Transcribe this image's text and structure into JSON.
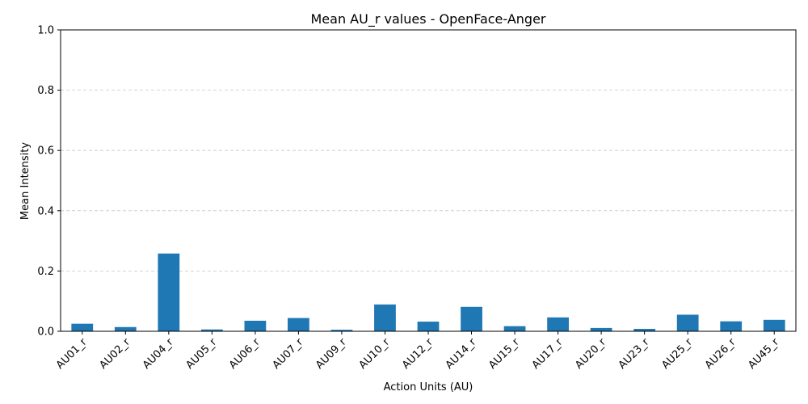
{
  "chart_data": {
    "type": "bar",
    "title": "Mean AU_r values - OpenFace-Anger",
    "xlabel": "Action Units (AU)",
    "ylabel": "Mean Intensity",
    "ylim": [
      0,
      1.0
    ],
    "yticks": [
      "0.0",
      "0.2",
      "0.4",
      "0.6",
      "0.8",
      "1.0"
    ],
    "grid": "y-dashed",
    "bar_color": "#1f77b4",
    "categories": [
      "AU01_r",
      "AU02_r",
      "AU04_r",
      "AU05_r",
      "AU06_r",
      "AU07_r",
      "AU09_r",
      "AU10_r",
      "AU12_r",
      "AU14_r",
      "AU15_r",
      "AU17_r",
      "AU20_r",
      "AU23_r",
      "AU25_r",
      "AU26_r",
      "AU45_r"
    ],
    "values": [
      0.025,
      0.014,
      0.258,
      0.006,
      0.035,
      0.044,
      0.005,
      0.089,
      0.032,
      0.081,
      0.017,
      0.046,
      0.011,
      0.008,
      0.055,
      0.033,
      0.038
    ]
  }
}
